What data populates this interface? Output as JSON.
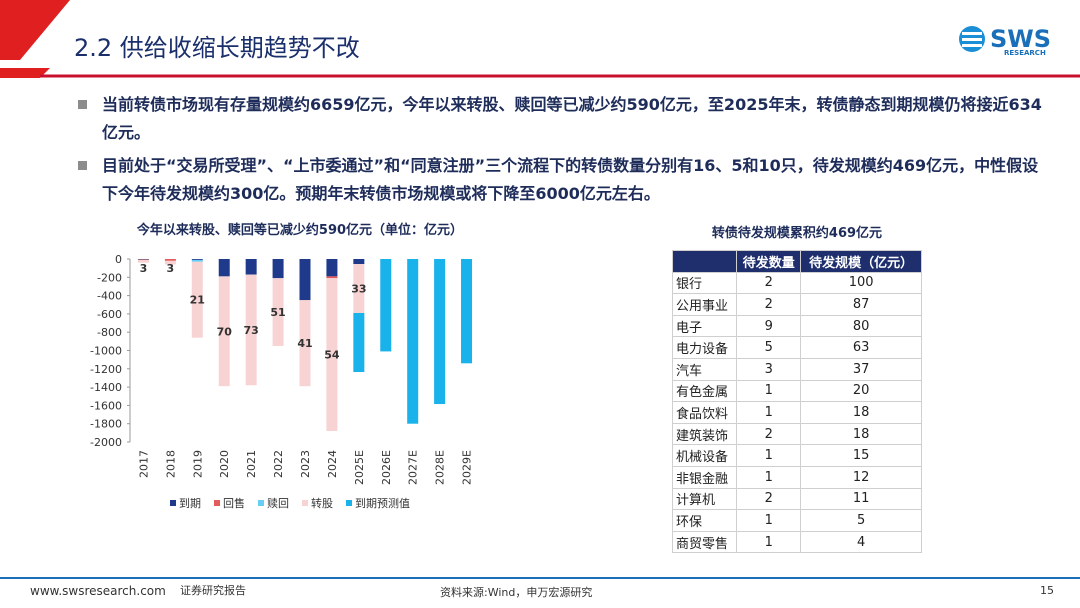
{
  "header": {
    "title": "2.2 供给收缩长期趋势不改",
    "logo": "SWS",
    "logo_sub": "RESEARCH"
  },
  "bullets": [
    "当前转债市场现有存量规模约6659亿元，今年以来转股、赎回等已减少约590亿元，至2025年末，转债静态到期规模仍将接近634亿元。",
    "目前处于“交易所受理”、“上市委通过”和“同意注册”三个流程下的转债数量分别有16、5和10只，待发规模约469亿元，中性假设下今年待发规模约300亿。预期年末转债市场规模或将下降至6000亿元左右。"
  ],
  "chart_data": {
    "type": "bar",
    "stacked": true,
    "title": "今年以来转股、赎回等已减少约590亿元（单位：亿元）",
    "categories": [
      "2017",
      "2018",
      "2019",
      "2020",
      "2021",
      "2022",
      "2023",
      "2024",
      "2025E",
      "2026E",
      "2027E",
      "2028E",
      "2029E"
    ],
    "series": [
      {
        "name": "到期",
        "color": "#1f3a8a",
        "values": [
          -5,
          0,
          -10,
          -190,
          -170,
          -210,
          -450,
          -190,
          -55,
          0,
          0,
          0,
          0
        ]
      },
      {
        "name": "回售",
        "color": "#e35b5b",
        "values": [
          -5,
          -20,
          0,
          0,
          0,
          0,
          0,
          -20,
          0,
          0,
          0,
          0,
          0
        ]
      },
      {
        "name": "赎回",
        "color": "#67cdf2",
        "values": [
          0,
          0,
          -20,
          0,
          0,
          0,
          0,
          0,
          0,
          0,
          0,
          0,
          0
        ]
      },
      {
        "name": "转股",
        "color": "#f8d3d3",
        "values": [
          -30,
          -40,
          -830,
          -1200,
          -1210,
          -740,
          -940,
          -1670,
          -535,
          0,
          0,
          0,
          0
        ]
      },
      {
        "name": "到期预测值",
        "color": "#19b2ea",
        "values": [
          0,
          0,
          0,
          0,
          0,
          0,
          0,
          0,
          -645,
          -1010,
          -1800,
          -1585,
          -1140
        ]
      }
    ],
    "annotations": [
      3,
      3,
      21,
      70,
      73,
      51,
      41,
      54,
      33,
      null,
      null,
      null,
      null
    ],
    "ylim": [
      -2000,
      0
    ],
    "yticks": [
      0,
      -200,
      -400,
      -600,
      -800,
      -1000,
      -1200,
      -1400,
      -1600,
      -1800,
      -2000
    ],
    "legend": "bottom"
  },
  "table": {
    "title": "转债待发规模累积约469亿元",
    "columns": [
      "",
      "待发数量",
      "待发规模（亿元）"
    ],
    "rows": [
      [
        "银行",
        "2",
        "100"
      ],
      [
        "公用事业",
        "2",
        "87"
      ],
      [
        "电子",
        "9",
        "80"
      ],
      [
        "电力设备",
        "5",
        "63"
      ],
      [
        "汽车",
        "3",
        "37"
      ],
      [
        "有色金属",
        "1",
        "20"
      ],
      [
        "食品饮料",
        "1",
        "18"
      ],
      [
        "建筑装饰",
        "2",
        "18"
      ],
      [
        "机械设备",
        "1",
        "15"
      ],
      [
        "非银金融",
        "1",
        "12"
      ],
      [
        "计算机",
        "2",
        "11"
      ],
      [
        "环保",
        "1",
        "5"
      ],
      [
        "商贸零售",
        "1",
        "4"
      ]
    ]
  },
  "footer": {
    "site": "www.swsresearch.com",
    "label": "证券研究报告",
    "source": "资料来源:Wind，申万宏源研究",
    "page": "15"
  }
}
